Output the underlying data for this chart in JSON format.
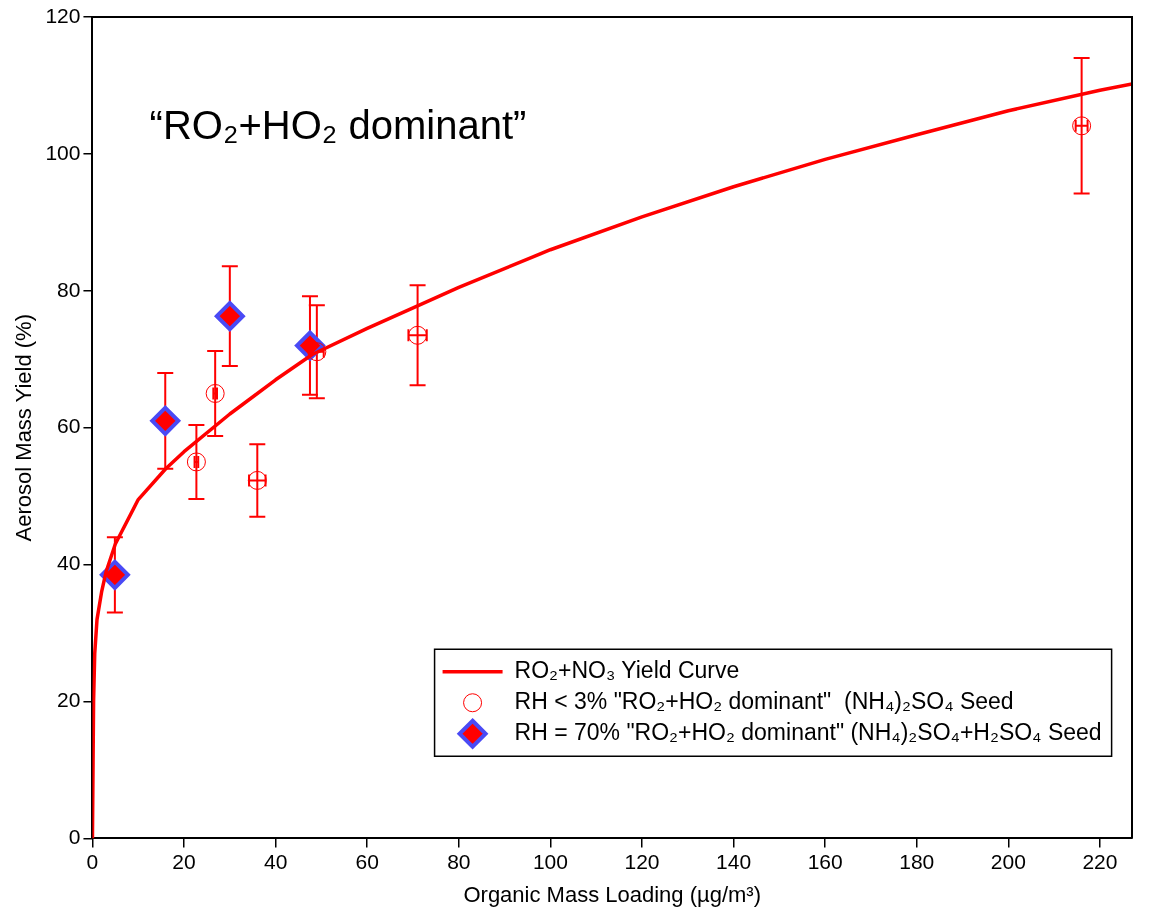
{
  "chart_data": {
    "type": "scatter",
    "xlabel": "Organic Mass Loading (µg/m³)",
    "ylabel": "Aerosol Mass Yield (%)",
    "annotations": [
      "“RO₂+HO₂ dominant”"
    ],
    "xlim": [
      0,
      227
    ],
    "xticks": [
      0,
      20,
      40,
      60,
      80,
      100,
      120,
      140,
      160,
      180,
      200,
      220
    ],
    "ylim": [
      0,
      120
    ],
    "yticks": [
      0,
      20,
      40,
      60,
      80,
      100,
      120
    ],
    "grid": false,
    "legend": "bottom right",
    "series": [
      {
        "name": "RO₂+NO₃ Yield Curve",
        "type": "line",
        "color": "#ff0000",
        "marker": "none",
        "line_style": "solid",
        "x": [
          0,
          0.25,
          0.5,
          1,
          2,
          3,
          5,
          10,
          16,
          20,
          30,
          40,
          48,
          60,
          71,
          80,
          100,
          120,
          140,
          160,
          180,
          200,
          220,
          227
        ],
        "values": [
          0,
          20,
          27,
          32,
          36,
          39,
          43,
          49.5,
          54,
          56.5,
          62,
          67,
          70.7,
          74.5,
          77.8,
          80.5,
          86,
          90.8,
          95.2,
          99.2,
          102.8,
          106.3,
          109.3,
          110.2
        ]
      },
      {
        "name": "RH < 3% \"RO₂+HO₂ dominant\"  (NH₄)₂SO₄ Seed",
        "color": "#ff0000",
        "marker": "circle",
        "x": [
          22.7,
          26.8,
          36,
          49,
          71,
          216
        ],
        "values": [
          55,
          65,
          52.3,
          71.1,
          73.5,
          104.1
        ],
        "errors": [
          5.4,
          6.2,
          5.3,
          6.8,
          7.3,
          9.9
        ],
        "xerrors": [
          0.4,
          0.4,
          1.8,
          1.5,
          2,
          1.3
        ]
      },
      {
        "name": "RH = 70% \"RO₂+HO₂ dominant\" (NH₄)₂SO₄+H₂SO₄ Seed",
        "color": "#ff0000",
        "marker": "diamond",
        "x": [
          4.9,
          15.9,
          30,
          47.5
        ],
        "values": [
          38.5,
          61,
          76.3,
          72
        ],
        "errors": [
          5.5,
          7,
          7.3,
          7.2
        ]
      }
    ]
  }
}
